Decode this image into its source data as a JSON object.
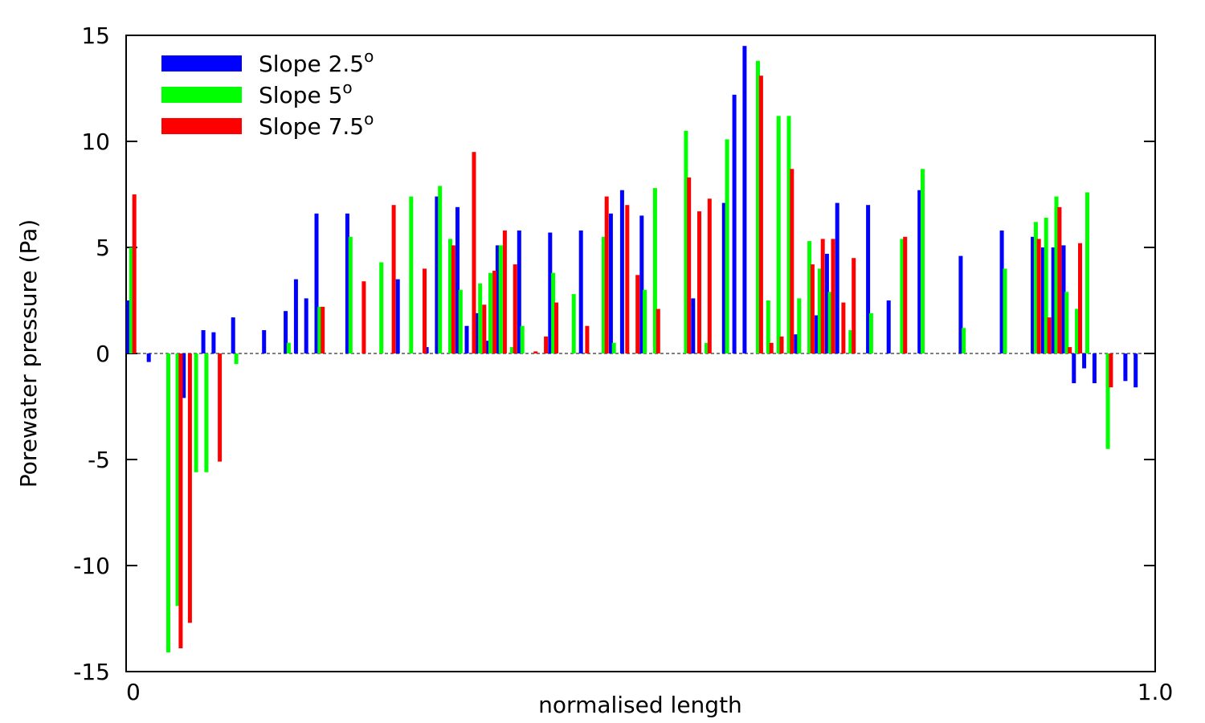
{
  "chart_data": {
    "type": "bar",
    "xlabel": "normalised length",
    "ylabel": "Porewater pressure (Pa)",
    "xlim": [
      0,
      1.0
    ],
    "ylim": [
      -15,
      15
    ],
    "xticks": [
      "0",
      "1.0"
    ],
    "yticks": [
      "15",
      "10",
      "5",
      "0",
      "-5",
      "-10",
      "-15"
    ],
    "legend_position": "top-left",
    "grid": false,
    "colors": {
      "Slope 2.5o": "#0000ff",
      "Slope 5o": "#00ff00",
      "Slope 7.5o": "#ff0000"
    },
    "series": [
      {
        "name": "Slope 2.5o",
        "legend_text": "Slope 2.5",
        "legend_sup": "o",
        "points": [
          {
            "x": 0.002,
            "y": 2.5
          },
          {
            "x": 0.022,
            "y": -0.4
          },
          {
            "x": 0.056,
            "y": -2.1
          },
          {
            "x": 0.075,
            "y": 1.1
          },
          {
            "x": 0.085,
            "y": 1.0
          },
          {
            "x": 0.104,
            "y": 1.7
          },
          {
            "x": 0.134,
            "y": 1.1
          },
          {
            "x": 0.155,
            "y": 2.0
          },
          {
            "x": 0.165,
            "y": 3.5
          },
          {
            "x": 0.175,
            "y": 2.6
          },
          {
            "x": 0.185,
            "y": 6.6
          },
          {
            "x": 0.215,
            "y": 6.6
          },
          {
            "x": 0.264,
            "y": 3.5
          },
          {
            "x": 0.292,
            "y": 0.3
          },
          {
            "x": 0.302,
            "y": 7.4
          },
          {
            "x": 0.322,
            "y": 6.9
          },
          {
            "x": 0.331,
            "y": 1.3
          },
          {
            "x": 0.341,
            "y": 1.9
          },
          {
            "x": 0.351,
            "y": 0.6
          },
          {
            "x": 0.361,
            "y": 5.1
          },
          {
            "x": 0.382,
            "y": 5.8
          },
          {
            "x": 0.412,
            "y": 5.7
          },
          {
            "x": 0.442,
            "y": 5.8
          },
          {
            "x": 0.471,
            "y": 6.6
          },
          {
            "x": 0.482,
            "y": 7.7
          },
          {
            "x": 0.501,
            "y": 6.5
          },
          {
            "x": 0.551,
            "y": 2.6
          },
          {
            "x": 0.581,
            "y": 7.1
          },
          {
            "x": 0.591,
            "y": 12.2
          },
          {
            "x": 0.601,
            "y": 14.5
          },
          {
            "x": 0.651,
            "y": 0.9
          },
          {
            "x": 0.671,
            "y": 1.8
          },
          {
            "x": 0.681,
            "y": 4.7
          },
          {
            "x": 0.691,
            "y": 7.1
          },
          {
            "x": 0.721,
            "y": 7.0
          },
          {
            "x": 0.741,
            "y": 2.5
          },
          {
            "x": 0.771,
            "y": 7.7
          },
          {
            "x": 0.811,
            "y": 4.6
          },
          {
            "x": 0.851,
            "y": 5.8
          },
          {
            "x": 0.881,
            "y": 5.5
          },
          {
            "x": 0.891,
            "y": 5.0
          },
          {
            "x": 0.901,
            "y": 5.0
          },
          {
            "x": 0.911,
            "y": 5.1
          },
          {
            "x": 0.921,
            "y": -1.4
          },
          {
            "x": 0.931,
            "y": -0.7
          },
          {
            "x": 0.941,
            "y": -1.4
          },
          {
            "x": 0.971,
            "y": -1.3
          },
          {
            "x": 0.981,
            "y": -1.6
          }
        ]
      },
      {
        "name": "Slope 5o",
        "legend_text": "Slope 5",
        "legend_sup": "o",
        "points": [
          {
            "x": 0.005,
            "y": 5.0
          },
          {
            "x": 0.041,
            "y": -14.1
          },
          {
            "x": 0.05,
            "y": -11.9
          },
          {
            "x": 0.068,
            "y": -5.6
          },
          {
            "x": 0.078,
            "y": -5.6
          },
          {
            "x": 0.107,
            "y": -0.5
          },
          {
            "x": 0.158,
            "y": 0.5
          },
          {
            "x": 0.188,
            "y": 2.2
          },
          {
            "x": 0.218,
            "y": 5.5
          },
          {
            "x": 0.248,
            "y": 4.3
          },
          {
            "x": 0.277,
            "y": 7.4
          },
          {
            "x": 0.305,
            "y": 7.9
          },
          {
            "x": 0.315,
            "y": 5.4
          },
          {
            "x": 0.325,
            "y": 3.0
          },
          {
            "x": 0.344,
            "y": 3.3
          },
          {
            "x": 0.354,
            "y": 3.8
          },
          {
            "x": 0.364,
            "y": 5.1
          },
          {
            "x": 0.375,
            "y": 0.3
          },
          {
            "x": 0.385,
            "y": 1.3
          },
          {
            "x": 0.415,
            "y": 3.8
          },
          {
            "x": 0.435,
            "y": 2.8
          },
          {
            "x": 0.464,
            "y": 5.5
          },
          {
            "x": 0.474,
            "y": 0.5
          },
          {
            "x": 0.504,
            "y": 3.0
          },
          {
            "x": 0.514,
            "y": 7.8
          },
          {
            "x": 0.544,
            "y": 10.5
          },
          {
            "x": 0.564,
            "y": 0.5
          },
          {
            "x": 0.584,
            "y": 10.1
          },
          {
            "x": 0.614,
            "y": 13.8
          },
          {
            "x": 0.624,
            "y": 2.5
          },
          {
            "x": 0.634,
            "y": 11.2
          },
          {
            "x": 0.644,
            "y": 11.2
          },
          {
            "x": 0.654,
            "y": 2.6
          },
          {
            "x": 0.664,
            "y": 5.3
          },
          {
            "x": 0.674,
            "y": 4.0
          },
          {
            "x": 0.684,
            "y": 2.9
          },
          {
            "x": 0.704,
            "y": 1.1
          },
          {
            "x": 0.724,
            "y": 1.9
          },
          {
            "x": 0.754,
            "y": 5.4
          },
          {
            "x": 0.774,
            "y": 8.7
          },
          {
            "x": 0.814,
            "y": 1.2
          },
          {
            "x": 0.854,
            "y": 4.0
          },
          {
            "x": 0.884,
            "y": 6.2
          },
          {
            "x": 0.894,
            "y": 6.4
          },
          {
            "x": 0.904,
            "y": 7.4
          },
          {
            "x": 0.914,
            "y": 2.9
          },
          {
            "x": 0.924,
            "y": 2.1
          },
          {
            "x": 0.934,
            "y": 7.6
          },
          {
            "x": 0.954,
            "y": -4.5
          }
        ]
      },
      {
        "name": "Slope 7.5o",
        "legend_text": "Slope 7.5",
        "legend_sup": "o",
        "points": [
          {
            "x": 0.008,
            "y": 7.5
          },
          {
            "x": 0.053,
            "y": -13.9
          },
          {
            "x": 0.062,
            "y": -12.7
          },
          {
            "x": 0.091,
            "y": -5.1
          },
          {
            "x": 0.191,
            "y": 2.2
          },
          {
            "x": 0.231,
            "y": 3.4
          },
          {
            "x": 0.26,
            "y": 7.0
          },
          {
            "x": 0.29,
            "y": 4.0
          },
          {
            "x": 0.338,
            "y": 9.5
          },
          {
            "x": 0.318,
            "y": 5.1
          },
          {
            "x": 0.348,
            "y": 2.3
          },
          {
            "x": 0.358,
            "y": 3.9
          },
          {
            "x": 0.368,
            "y": 5.8
          },
          {
            "x": 0.378,
            "y": 4.2
          },
          {
            "x": 0.398,
            "y": 0.1
          },
          {
            "x": 0.408,
            "y": 0.8
          },
          {
            "x": 0.418,
            "y": 2.4
          },
          {
            "x": 0.448,
            "y": 1.3
          },
          {
            "x": 0.467,
            "y": 7.4
          },
          {
            "x": 0.487,
            "y": 7.0
          },
          {
            "x": 0.497,
            "y": 3.7
          },
          {
            "x": 0.517,
            "y": 2.1
          },
          {
            "x": 0.547,
            "y": 8.3
          },
          {
            "x": 0.557,
            "y": 6.7
          },
          {
            "x": 0.567,
            "y": 7.3
          },
          {
            "x": 0.617,
            "y": 13.1
          },
          {
            "x": 0.627,
            "y": 0.5
          },
          {
            "x": 0.637,
            "y": 0.8
          },
          {
            "x": 0.647,
            "y": 8.7
          },
          {
            "x": 0.667,
            "y": 4.2
          },
          {
            "x": 0.677,
            "y": 5.4
          },
          {
            "x": 0.687,
            "y": 5.4
          },
          {
            "x": 0.697,
            "y": 2.4
          },
          {
            "x": 0.707,
            "y": 4.5
          },
          {
            "x": 0.757,
            "y": 5.5
          },
          {
            "x": 0.887,
            "y": 5.4
          },
          {
            "x": 0.897,
            "y": 1.7
          },
          {
            "x": 0.907,
            "y": 6.9
          },
          {
            "x": 0.917,
            "y": 0.3
          },
          {
            "x": 0.927,
            "y": 5.2
          },
          {
            "x": 0.957,
            "y": -1.6
          }
        ]
      }
    ]
  }
}
